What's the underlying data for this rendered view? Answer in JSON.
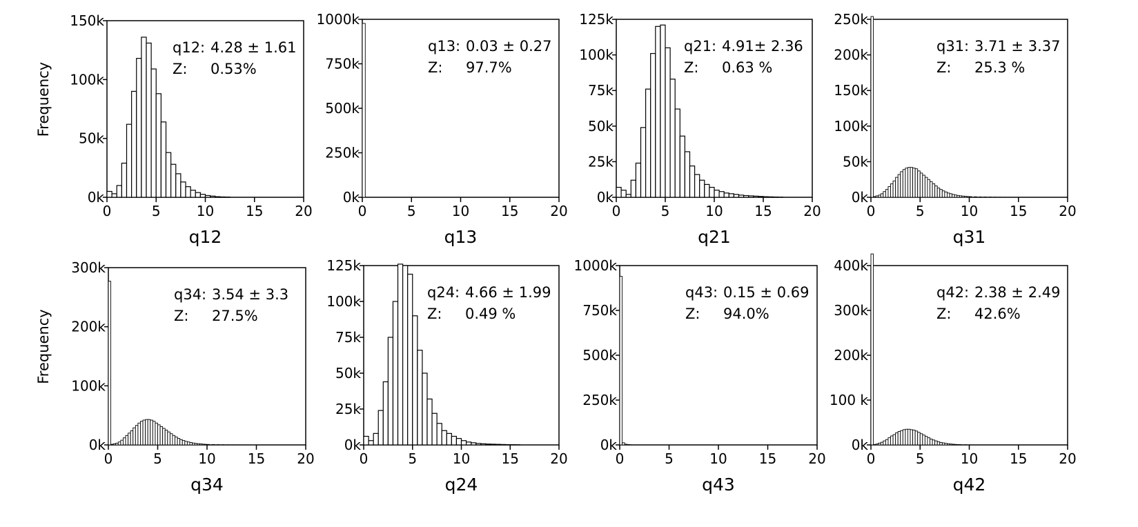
{
  "y_axis_label": "Frequency",
  "chart_data": [
    {
      "type": "bar",
      "title": "",
      "xlabel": "q12",
      "ylabel": "Frequency",
      "xlim": [
        0,
        20
      ],
      "ylim": [
        0,
        150000
      ],
      "xticks": [
        "0",
        "5",
        "10",
        "15",
        "20"
      ],
      "yticks": [
        "0k",
        "50k",
        "100k",
        "150k"
      ],
      "bin_width": 0.5,
      "x": [
        0.0,
        0.5,
        1.0,
        1.5,
        2.0,
        2.5,
        3.0,
        3.5,
        4.0,
        4.5,
        5.0,
        5.5,
        6.0,
        6.5,
        7.0,
        7.5,
        8.0,
        8.5,
        9.0,
        9.5,
        10.0,
        10.5,
        11.0,
        11.5,
        12.0
      ],
      "values": [
        5000,
        3000,
        10000,
        29000,
        62000,
        90000,
        118000,
        136000,
        131000,
        109000,
        88000,
        64000,
        38000,
        28000,
        20000,
        13000,
        9000,
        6000,
        4000,
        2500,
        1500,
        1000,
        500,
        300,
        200
      ],
      "annotation": {
        "stat_label": "q12:",
        "stat_value": "4.28 ± 1.61",
        "z_label": "Z:",
        "z_value": "0.53%"
      }
    },
    {
      "type": "bar",
      "title": "",
      "xlabel": "q13",
      "ylabel": "",
      "xlim": [
        0,
        20
      ],
      "ylim": [
        0,
        1000000
      ],
      "xticks": [
        "0",
        "5",
        "10",
        "15",
        "20"
      ],
      "yticks": [
        "0k",
        "250k",
        "500k",
        "750k",
        "1000k"
      ],
      "bin_width": 0.3,
      "x": [
        0.0
      ],
      "values": [
        977000
      ],
      "annotation": {
        "stat_label": "q13:",
        "stat_value": "0.03 ± 0.27",
        "z_label": "Z:",
        "z_value": "97.7%"
      }
    },
    {
      "type": "bar",
      "title": "",
      "xlabel": "q21",
      "ylabel": "",
      "xlim": [
        0,
        20
      ],
      "ylim": [
        0,
        125000
      ],
      "xticks": [
        "0",
        "5",
        "10",
        "15",
        "20"
      ],
      "yticks": [
        "0k",
        "25k",
        "50k",
        "75k",
        "100k",
        "125k"
      ],
      "bin_width": 0.5,
      "x": [
        0.0,
        0.5,
        1.0,
        1.5,
        2.0,
        2.5,
        3.0,
        3.5,
        4.0,
        4.5,
        5.0,
        5.5,
        6.0,
        6.5,
        7.0,
        7.5,
        8.0,
        8.5,
        9.0,
        9.5,
        10.0,
        10.5,
        11.0,
        11.5,
        12.0,
        12.5,
        13.0,
        13.5,
        14.0,
        14.5,
        15.0,
        15.5,
        16.0,
        16.5
      ],
      "values": [
        7000,
        5000,
        2000,
        12000,
        24000,
        49000,
        76000,
        101000,
        120000,
        121000,
        105000,
        83000,
        62000,
        43000,
        32000,
        22000,
        16000,
        12000,
        9000,
        7000,
        5000,
        4000,
        3000,
        2500,
        2000,
        1500,
        1200,
        1000,
        800,
        600,
        400,
        300,
        200,
        100
      ],
      "annotation": {
        "stat_label": "q21:",
        "stat_value": "4.91± 2.36",
        "z_label": "Z:",
        "z_value": "0.63 %"
      }
    },
    {
      "type": "bar",
      "title": "",
      "xlabel": "q31",
      "ylabel": "",
      "xlim": [
        0,
        20
      ],
      "ylim": [
        0,
        250000
      ],
      "xticks": [
        "0",
        "5",
        "10",
        "15",
        "20"
      ],
      "yticks": [
        "0k",
        "50k",
        "100k",
        "150k",
        "200k",
        "250k"
      ],
      "bin_width": 0.25,
      "x": [
        0.0,
        0.25,
        0.5,
        0.75,
        1.0,
        1.25,
        1.5,
        1.75,
        2.0,
        2.25,
        2.5,
        2.75,
        3.0,
        3.25,
        3.5,
        3.75,
        4.0,
        4.25,
        4.5,
        4.75,
        5.0,
        5.25,
        5.5,
        5.75,
        6.0,
        6.25,
        6.5,
        6.75,
        7.0,
        7.25,
        7.5,
        7.75,
        8.0,
        8.25,
        8.5,
        8.75,
        9.0,
        9.25,
        9.5,
        9.75,
        10.0,
        10.5,
        11.0,
        11.5,
        12.0,
        12.5,
        13.0,
        13.5,
        14.0
      ],
      "values": [
        254000,
        1000,
        2000,
        3000,
        5000,
        8000,
        11000,
        15000,
        19000,
        23000,
        28000,
        32000,
        36000,
        39000,
        41000,
        42000,
        42000,
        41000,
        40000,
        37000,
        34000,
        31000,
        28000,
        25000,
        22000,
        19000,
        16000,
        13000,
        11000,
        9000,
        7500,
        6000,
        5000,
        4000,
        3200,
        2600,
        2100,
        1700,
        1400,
        1100,
        900,
        700,
        500,
        400,
        300,
        200,
        150,
        100,
        80
      ],
      "annotation": {
        "stat_label": "q31:",
        "stat_value": "3.71 ± 3.37",
        "z_label": "Z:",
        "z_value": "25.3 %"
      }
    },
    {
      "type": "bar",
      "title": "",
      "xlabel": "q34",
      "ylabel": "Frequency",
      "xlim": [
        0,
        20
      ],
      "ylim": [
        0,
        300000
      ],
      "xticks": [
        "0",
        "5",
        "10",
        "15",
        "20"
      ],
      "yticks": [
        "0k",
        "100k",
        "200k",
        "300k"
      ],
      "bin_width": 0.25,
      "x": [
        0.0,
        0.25,
        0.5,
        0.75,
        1.0,
        1.25,
        1.5,
        1.75,
        2.0,
        2.25,
        2.5,
        2.75,
        3.0,
        3.25,
        3.5,
        3.75,
        4.0,
        4.25,
        4.5,
        4.75,
        5.0,
        5.25,
        5.5,
        5.75,
        6.0,
        6.25,
        6.5,
        6.75,
        7.0,
        7.25,
        7.5,
        7.75,
        8.0,
        8.25,
        8.5,
        8.75,
        9.0,
        9.25,
        9.5,
        9.75,
        10.0,
        10.5,
        11.0,
        11.5,
        12.0,
        12.5,
        13.0,
        13.5
      ],
      "values": [
        277000,
        1000,
        2000,
        3000,
        5000,
        8000,
        12000,
        16000,
        20000,
        24000,
        29000,
        33000,
        37000,
        40000,
        42000,
        43000,
        43000,
        42000,
        40000,
        37000,
        34000,
        31000,
        28000,
        25000,
        22000,
        19000,
        16000,
        13500,
        11000,
        9000,
        7500,
        6000,
        5000,
        4000,
        3200,
        2600,
        2100,
        1700,
        1300,
        1000,
        800,
        600,
        400,
        300,
        200,
        150,
        100,
        80
      ],
      "annotation": {
        "stat_label": "q34:",
        "stat_value": "3.54 ± 3.3",
        "z_label": "Z:",
        "z_value": "27.5%"
      }
    },
    {
      "type": "bar",
      "title": "",
      "xlabel": "q24",
      "ylabel": "",
      "xlim": [
        0,
        20
      ],
      "ylim": [
        0,
        125000
      ],
      "xticks": [
        "0",
        "5",
        "10",
        "15",
        "20"
      ],
      "yticks": [
        "0k",
        "25k",
        "50k",
        "75k",
        "100k",
        "125k"
      ],
      "bin_width": 0.5,
      "x": [
        0.0,
        0.5,
        1.0,
        1.5,
        2.0,
        2.5,
        3.0,
        3.5,
        4.0,
        4.5,
        5.0,
        5.5,
        6.0,
        6.5,
        7.0,
        7.5,
        8.0,
        8.5,
        9.0,
        9.5,
        10.0,
        10.5,
        11.0,
        11.5,
        12.0,
        12.5,
        13.0,
        13.5,
        14.0,
        14.5,
        15.0,
        15.5
      ],
      "values": [
        6000,
        3000,
        8000,
        24000,
        44000,
        75000,
        100000,
        126000,
        125000,
        119000,
        90000,
        66000,
        50000,
        32000,
        22000,
        15000,
        10000,
        8000,
        6000,
        4500,
        3000,
        2000,
        1500,
        1000,
        800,
        600,
        500,
        400,
        300,
        200,
        150,
        100
      ],
      "annotation": {
        "stat_label": "q24:",
        "stat_value": "4.66 ± 1.99",
        "z_label": "Z:",
        "z_value": "0.49 %"
      }
    },
    {
      "type": "bar",
      "title": "",
      "xlabel": "q43",
      "ylabel": "",
      "xlim": [
        0,
        20
      ],
      "ylim": [
        0,
        1000000
      ],
      "xticks": [
        "0",
        "5",
        "10",
        "15",
        "20"
      ],
      "yticks": [
        "0k",
        "250k",
        "500k",
        "750k",
        "1000k"
      ],
      "bin_width": 0.25,
      "x": [
        0.0,
        0.25,
        0.5,
        0.75,
        1.0
      ],
      "values": [
        940000,
        12000,
        4000,
        2000,
        800
      ],
      "annotation": {
        "stat_label": "q43:",
        "stat_value": "0.15 ± 0.69",
        "z_label": "Z:",
        "z_value": "94.0%"
      }
    },
    {
      "type": "bar",
      "title": "",
      "xlabel": "q42",
      "ylabel": "",
      "xlim": [
        0,
        20
      ],
      "ylim": [
        0,
        400000
      ],
      "xticks": [
        "0",
        "5",
        "10",
        "15",
        "20"
      ],
      "yticks": [
        "0k",
        "100 k",
        "200k",
        "300k",
        "400k"
      ],
      "bin_width": 0.25,
      "x": [
        0.0,
        0.25,
        0.5,
        0.75,
        1.0,
        1.25,
        1.5,
        1.75,
        2.0,
        2.25,
        2.5,
        2.75,
        3.0,
        3.25,
        3.5,
        3.75,
        4.0,
        4.25,
        4.5,
        4.75,
        5.0,
        5.25,
        5.5,
        5.75,
        6.0,
        6.25,
        6.5,
        6.75,
        7.0,
        7.25,
        7.5,
        7.75,
        8.0,
        8.25,
        8.5,
        8.75,
        9.0,
        9.5,
        10.0
      ],
      "values": [
        426000,
        1000,
        2000,
        4000,
        6000,
        9000,
        12000,
        16000,
        20000,
        23000,
        27000,
        30000,
        32000,
        34000,
        35000,
        35000,
        34000,
        33000,
        31000,
        28000,
        25000,
        22000,
        19000,
        16000,
        13000,
        11000,
        9000,
        7000,
        5500,
        4500,
        3500,
        2700,
        2000,
        1500,
        1100,
        800,
        600,
        400,
        200
      ],
      "annotation": {
        "stat_label": "q42:",
        "stat_value": "2.38 ± 2.49",
        "z_label": "Z:",
        "z_value": "42.6%"
      }
    }
  ]
}
